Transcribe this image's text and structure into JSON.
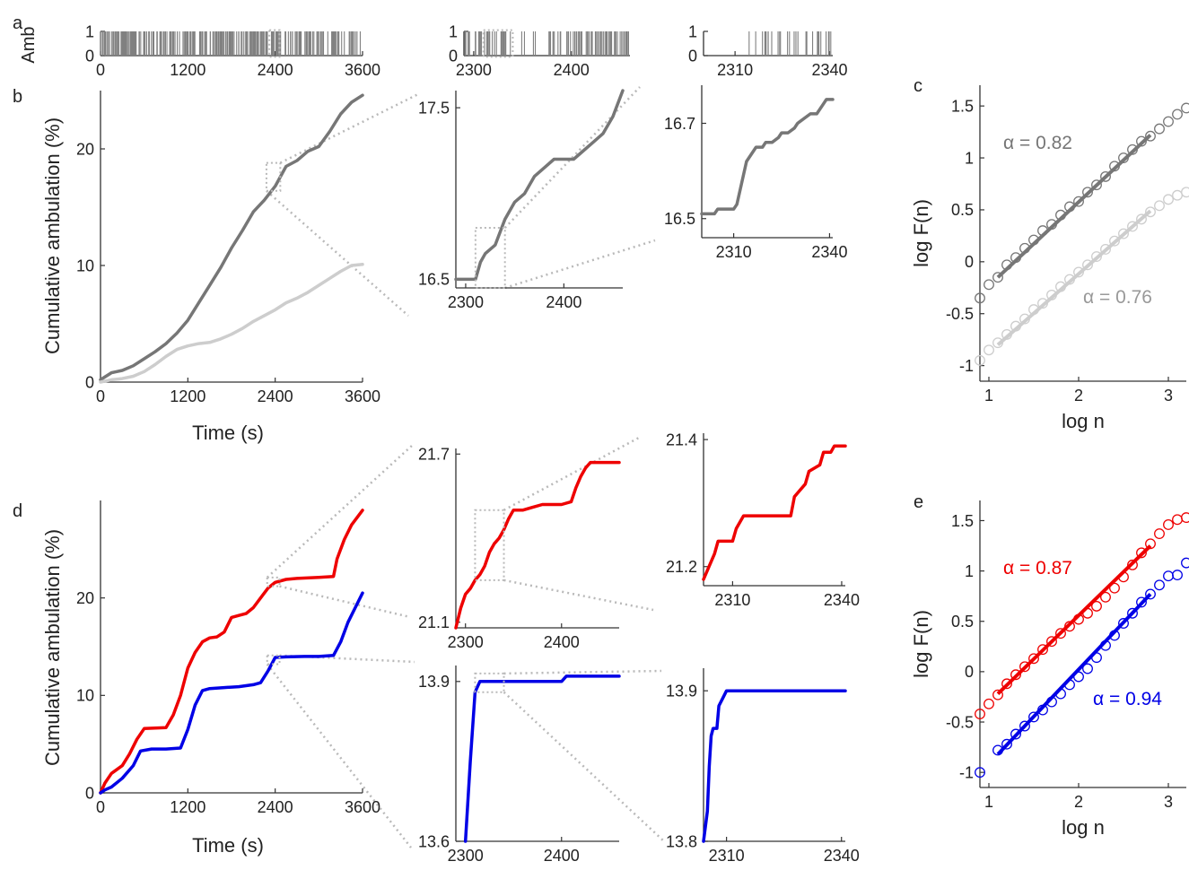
{
  "colors": {
    "dark_gray": "#767676",
    "light_gray": "#cdcdcd",
    "red": "#ee0000",
    "blue": "#0000e6",
    "axis": "#333333",
    "zoom_box": "#b9b9b9",
    "amb_bars": "#808080"
  },
  "chart_data": [
    {
      "id": "a",
      "panel_label": "a",
      "type": "bar",
      "description_mode": "binary ambulation raster (0/1) with zoom insets",
      "ylabel": "Amb",
      "sub_panels": [
        {
          "xlim": [
            0,
            3600
          ],
          "ylim": [
            0,
            1
          ],
          "xticks": [
            0,
            1200,
            2400,
            3600
          ],
          "yticks": [
            0,
            1
          ],
          "zoom_box_x": [
            2320,
            2460
          ]
        },
        {
          "xlim": [
            2290,
            2460
          ],
          "ylim": [
            0,
            1
          ],
          "xticks": [
            2300,
            2400
          ],
          "yticks": [
            0,
            1
          ],
          "zoom_box_x": [
            2310,
            2340
          ]
        },
        {
          "xlim": [
            2300,
            2341
          ],
          "ylim": [
            0,
            1
          ],
          "xticks": [
            2310,
            2340
          ],
          "yticks": [
            0,
            1
          ]
        }
      ]
    },
    {
      "id": "b",
      "panel_label": "b",
      "type": "line",
      "xlabel": "Time (s)",
      "ylabel": "Cumulative ambulation (%)",
      "xlim": [
        0,
        3600
      ],
      "ylim": [
        0,
        25
      ],
      "xticks": [
        0,
        1200,
        2400,
        3600
      ],
      "yticks": [
        0,
        10,
        20
      ],
      "series": [
        {
          "color": "#767676",
          "x": [
            0,
            150,
            300,
            450,
            600,
            750,
            900,
            1050,
            1200,
            1350,
            1500,
            1650,
            1800,
            1950,
            2100,
            2250,
            2400,
            2550,
            2700,
            2850,
            3000,
            3150,
            3300,
            3450,
            3600
          ],
          "y": [
            0.2,
            0.8,
            1.0,
            1.4,
            2.0,
            2.6,
            3.3,
            4.2,
            5.3,
            6.8,
            8.3,
            9.8,
            11.5,
            13.0,
            14.6,
            15.6,
            16.8,
            18.5,
            19.0,
            19.8,
            20.2,
            21.5,
            23.0,
            24.0,
            24.6
          ]
        },
        {
          "color": "#cdcdcd",
          "x": [
            0,
            150,
            300,
            450,
            600,
            750,
            900,
            1050,
            1200,
            1350,
            1500,
            1650,
            1800,
            1950,
            2100,
            2250,
            2400,
            2550,
            2700,
            2850,
            3000,
            3150,
            3300,
            3450,
            3600
          ],
          "y": [
            0.0,
            0.2,
            0.3,
            0.5,
            0.9,
            1.5,
            2.2,
            2.8,
            3.1,
            3.3,
            3.4,
            3.7,
            4.1,
            4.6,
            5.2,
            5.7,
            6.2,
            6.8,
            7.2,
            7.7,
            8.3,
            8.9,
            9.5,
            10.0,
            10.1
          ]
        }
      ],
      "zoom_box_x": [
        2280,
        2460
      ]
    },
    {
      "id": "b-zoom1",
      "type": "line",
      "xlim": [
        2290,
        2460
      ],
      "ylim": [
        16.45,
        17.6
      ],
      "xticks": [
        2300,
        2400
      ],
      "yticks": [
        16.5,
        17.5
      ],
      "ytick_labels": [
        "16.5",
        "17.5"
      ],
      "series": [
        {
          "color": "#767676",
          "x": [
            2290,
            2310,
            2315,
            2320,
            2330,
            2340,
            2350,
            2360,
            2370,
            2380,
            2390,
            2400,
            2410,
            2420,
            2430,
            2440,
            2450,
            2460
          ],
          "y": [
            16.5,
            16.5,
            16.6,
            16.65,
            16.7,
            16.85,
            16.95,
            17.0,
            17.1,
            17.15,
            17.2,
            17.2,
            17.2,
            17.25,
            17.3,
            17.35,
            17.45,
            17.6
          ]
        }
      ],
      "zoom_box_x": [
        2310,
        2340
      ]
    },
    {
      "id": "b-zoom2",
      "type": "line",
      "xlim": [
        2300,
        2341
      ],
      "ylim": [
        16.46,
        16.78
      ],
      "xticks": [
        2310,
        2340
      ],
      "yticks": [
        16.5,
        16.7
      ],
      "ytick_labels": [
        "16.5",
        "16.7"
      ],
      "series": [
        {
          "color": "#767676",
          "x": [
            2300,
            2304,
            2305,
            2310,
            2311,
            2314,
            2317,
            2319,
            2320,
            2322,
            2324,
            2325,
            2327,
            2329,
            2330,
            2334,
            2336,
            2338,
            2339,
            2341
          ],
          "y": [
            16.51,
            16.51,
            16.52,
            16.52,
            16.53,
            16.62,
            16.65,
            16.65,
            16.66,
            16.66,
            16.67,
            16.68,
            16.68,
            16.69,
            16.7,
            16.72,
            16.72,
            16.74,
            16.75,
            16.75
          ]
        }
      ]
    },
    {
      "id": "c",
      "panel_label": "c",
      "type": "scatter",
      "xlabel": "log n",
      "ylabel": "log F(n)",
      "xlim": [
        0.9,
        3.2
      ],
      "ylim": [
        -1.15,
        1.7
      ],
      "xticks": [
        1,
        2,
        3
      ],
      "yticks": [
        -1,
        -0.5,
        0,
        0.5,
        1,
        1.5
      ],
      "ytick_labels": [
        "-1",
        "-0.5",
        "0",
        "0.5",
        "1",
        "1.5"
      ],
      "series": [
        {
          "color": "#767676",
          "alpha_label": "α = 0.82",
          "x": [
            0.9,
            1.0,
            1.1,
            1.2,
            1.3,
            1.4,
            1.5,
            1.6,
            1.7,
            1.8,
            1.9,
            2.0,
            2.1,
            2.2,
            2.3,
            2.4,
            2.5,
            2.6,
            2.7,
            2.8,
            2.9,
            3.0,
            3.1,
            3.2
          ],
          "y": [
            -0.35,
            -0.22,
            -0.15,
            -0.03,
            0.04,
            0.13,
            0.21,
            0.3,
            0.36,
            0.45,
            0.53,
            0.58,
            0.67,
            0.74,
            0.82,
            0.92,
            1.0,
            1.08,
            1.16,
            1.21,
            1.28,
            1.35,
            1.42,
            1.48
          ],
          "fit": {
            "x": [
              1.1,
              2.8
            ],
            "y": [
              -0.15,
              1.22
            ]
          }
        },
        {
          "color": "#cdcdcd",
          "alpha_label": "α = 0.76",
          "x": [
            0.9,
            1.0,
            1.1,
            1.2,
            1.3,
            1.4,
            1.5,
            1.6,
            1.7,
            1.8,
            1.9,
            2.0,
            2.1,
            2.2,
            2.3,
            2.4,
            2.5,
            2.6,
            2.7,
            2.8,
            2.9,
            3.0,
            3.1,
            3.2
          ],
          "y": [
            -0.95,
            -0.85,
            -0.78,
            -0.7,
            -0.62,
            -0.55,
            -0.46,
            -0.4,
            -0.32,
            -0.24,
            -0.17,
            -0.1,
            -0.03,
            0.05,
            0.12,
            0.2,
            0.27,
            0.34,
            0.41,
            0.48,
            0.54,
            0.6,
            0.64,
            0.67
          ],
          "fit": {
            "x": [
              1.1,
              2.8
            ],
            "y": [
              -0.8,
              0.49
            ]
          }
        }
      ]
    },
    {
      "id": "d",
      "panel_label": "d",
      "type": "line",
      "xlabel": "Time (s)",
      "ylabel": "Cumulative ambulation (%)",
      "xlim": [
        0,
        3600
      ],
      "ylim": [
        0,
        30
      ],
      "xticks": [
        0,
        1200,
        2400,
        3600
      ],
      "xtick_labels": [
        "0",
        "1200",
        "2400",
        "3600"
      ],
      "yticks": [
        0,
        10,
        20
      ],
      "series": [
        {
          "color": "#ee0000",
          "x": [
            0,
            60,
            150,
            300,
            400,
            500,
            600,
            900,
            1000,
            1100,
            1200,
            1300,
            1400,
            1500,
            1600,
            1700,
            1800,
            1900,
            2000,
            2100,
            2200,
            2300,
            2400,
            2550,
            2700,
            3000,
            3200,
            3250,
            3350,
            3450,
            3600
          ],
          "y": [
            0,
            1.0,
            2.0,
            2.8,
            4.0,
            5.5,
            6.6,
            6.7,
            8.0,
            10.0,
            12.8,
            14.4,
            15.5,
            15.9,
            16.0,
            16.5,
            18.0,
            18.2,
            18.4,
            19.0,
            20.0,
            21.0,
            21.6,
            21.9,
            22.0,
            22.1,
            22.2,
            24.0,
            26.0,
            27.5,
            29.0
          ]
        },
        {
          "color": "#0000e6",
          "x": [
            0,
            60,
            150,
            300,
            450,
            550,
            700,
            900,
            1100,
            1200,
            1300,
            1400,
            1500,
            1700,
            1900,
            2000,
            2100,
            2200,
            2300,
            2400,
            2550,
            2800,
            3000,
            3200,
            3300,
            3400,
            3500,
            3600
          ],
          "y": [
            0,
            0.3,
            0.6,
            1.5,
            2.8,
            4.3,
            4.5,
            4.5,
            4.6,
            6.5,
            9.0,
            10.5,
            10.7,
            10.8,
            10.9,
            11.0,
            11.1,
            11.3,
            12.5,
            13.9,
            13.95,
            14.0,
            14.0,
            14.1,
            15.5,
            17.5,
            19.0,
            20.5
          ]
        }
      ],
      "zoom_boxes": [
        {
          "x": [
            2330,
            2460
          ],
          "y": [
            21.2,
            22.1
          ]
        },
        {
          "x": [
            2330,
            2460
          ],
          "y": [
            13.2,
            14.1
          ]
        }
      ]
    },
    {
      "id": "d-red-zoom1",
      "type": "line",
      "xlim": [
        2290,
        2460
      ],
      "ylim": [
        21.08,
        21.72
      ],
      "xticks": [
        2300,
        2400
      ],
      "yticks": [
        21.1,
        21.7
      ],
      "ytick_labels": [
        "21.1",
        "21.7"
      ],
      "series": [
        {
          "color": "#ee0000",
          "x": [
            2290,
            2295,
            2300,
            2305,
            2310,
            2315,
            2320,
            2325,
            2330,
            2335,
            2340,
            2345,
            2350,
            2360,
            2370,
            2380,
            2390,
            2400,
            2410,
            2415,
            2420,
            2425,
            2430,
            2440,
            2460
          ],
          "y": [
            21.08,
            21.15,
            21.2,
            21.22,
            21.25,
            21.27,
            21.3,
            21.35,
            21.38,
            21.4,
            21.43,
            21.47,
            21.5,
            21.5,
            21.51,
            21.52,
            21.52,
            21.52,
            21.53,
            21.58,
            21.62,
            21.65,
            21.67,
            21.67,
            21.67
          ]
        }
      ],
      "zoom_box_x": [
        2310,
        2340
      ]
    },
    {
      "id": "d-red-zoom2",
      "type": "line",
      "xlim": [
        2302,
        2341
      ],
      "ylim": [
        21.17,
        21.41
      ],
      "xticks": [
        2310,
        2340
      ],
      "yticks": [
        21.2,
        21.4
      ],
      "ytick_labels": [
        "21.2",
        "21.4"
      ],
      "series": [
        {
          "color": "#ee0000",
          "x": [
            2302,
            2305,
            2306,
            2310,
            2311,
            2313,
            2324,
            2326,
            2327,
            2330,
            2331,
            2334,
            2335,
            2337,
            2338,
            2341
          ],
          "y": [
            21.18,
            21.22,
            21.24,
            21.24,
            21.26,
            21.28,
            21.28,
            21.28,
            21.31,
            21.33,
            21.35,
            21.36,
            21.38,
            21.38,
            21.39,
            21.39
          ]
        }
      ]
    },
    {
      "id": "d-blue-zoom1",
      "type": "line",
      "xlim": [
        2290,
        2460
      ],
      "ylim": [
        13.6,
        13.93
      ],
      "xticks": [
        2300,
        2400
      ],
      "yticks": [
        13.6,
        13.9
      ],
      "ytick_labels": [
        "13.6",
        "13.9"
      ],
      "series": [
        {
          "color": "#0000e6",
          "x": [
            2300,
            2305,
            2310,
            2315,
            2340,
            2380,
            2400,
            2405,
            2460
          ],
          "y": [
            13.6,
            13.75,
            13.88,
            13.9,
            13.9,
            13.9,
            13.9,
            13.91,
            13.91
          ]
        }
      ],
      "zoom_box_x": [
        2310,
        2340
      ]
    },
    {
      "id": "d-blue-zoom2",
      "type": "line",
      "xlim": [
        2304,
        2341
      ],
      "ylim": [
        13.8,
        13.915
      ],
      "xticks": [
        2310,
        2340
      ],
      "yticks": [
        13.8,
        13.9
      ],
      "ytick_labels": [
        "13.8",
        "13.9"
      ],
      "series": [
        {
          "color": "#0000e6",
          "x": [
            2304,
            2305,
            2305.5,
            2306,
            2306.5,
            2307.5,
            2308,
            2309,
            2310,
            2341
          ],
          "y": [
            13.8,
            13.82,
            13.85,
            13.87,
            13.875,
            13.875,
            13.89,
            13.895,
            13.9,
            13.9
          ]
        }
      ]
    },
    {
      "id": "e",
      "panel_label": "e",
      "type": "scatter",
      "xlabel": "log n",
      "ylabel": "log F(n)",
      "xlim": [
        0.9,
        3.2
      ],
      "ylim": [
        -1.15,
        1.7
      ],
      "xticks": [
        1,
        2,
        3
      ],
      "yticks": [
        -1,
        -0.5,
        0,
        0.5,
        1,
        1.5
      ],
      "ytick_labels": [
        "-1",
        "-0.5",
        "0",
        "0.5",
        "1",
        "1.5"
      ],
      "series": [
        {
          "color": "#ee0000",
          "alpha_label": "α = 0.87",
          "x": [
            0.9,
            1.0,
            1.1,
            1.2,
            1.3,
            1.4,
            1.5,
            1.6,
            1.7,
            1.8,
            1.9,
            2.0,
            2.1,
            2.2,
            2.3,
            2.4,
            2.5,
            2.6,
            2.7,
            2.8,
            2.9,
            3.0,
            3.1,
            3.2
          ],
          "y": [
            -0.42,
            -0.32,
            -0.23,
            -0.12,
            -0.03,
            0.05,
            0.13,
            0.22,
            0.3,
            0.38,
            0.45,
            0.52,
            0.58,
            0.65,
            0.74,
            0.83,
            0.94,
            1.06,
            1.18,
            1.27,
            1.37,
            1.46,
            1.51,
            1.53
          ],
          "fit": {
            "x": [
              1.1,
              2.8
            ],
            "y": [
              -0.22,
              1.25
            ]
          }
        },
        {
          "color": "#0000e6",
          "alpha_label": "α = 0.94",
          "x": [
            0.9,
            1.1,
            1.2,
            1.3,
            1.4,
            1.5,
            1.6,
            1.7,
            1.8,
            1.9,
            2.0,
            2.1,
            2.2,
            2.3,
            2.4,
            2.5,
            2.6,
            2.7,
            2.8,
            2.9,
            3.0,
            3.1,
            3.2
          ],
          "y": [
            -1.0,
            -0.78,
            -0.72,
            -0.62,
            -0.54,
            -0.45,
            -0.38,
            -0.3,
            -0.22,
            -0.13,
            -0.05,
            0.03,
            0.14,
            0.26,
            0.36,
            0.48,
            0.58,
            0.69,
            0.77,
            0.86,
            0.95,
            0.96,
            1.08
          ],
          "fit": {
            "x": [
              1.1,
              2.8
            ],
            "y": [
              -0.82,
              0.77
            ]
          }
        }
      ]
    }
  ]
}
